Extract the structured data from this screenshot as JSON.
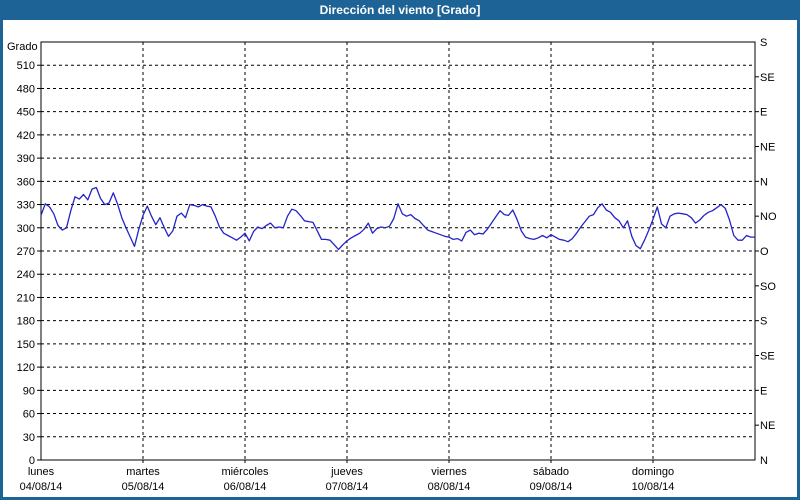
{
  "window": {
    "title": "Dirección del viento [Grado]"
  },
  "colors": {
    "titlebar_bg": "#1e6396",
    "border": "#1e6396",
    "line": "#2424c8",
    "background": "#ffffff",
    "grid": "#000000"
  },
  "chart_data": {
    "type": "line",
    "title": "Dirección del viento [Grado]",
    "ylabel": "Grado",
    "ylim": [
      0,
      540
    ],
    "y_left_step": 30,
    "y_left_labels": [
      0,
      30,
      60,
      90,
      120,
      150,
      180,
      210,
      240,
      270,
      300,
      330,
      360,
      390,
      420,
      450,
      480,
      510
    ],
    "right_ticks": [
      {
        "value": 0,
        "label": "N"
      },
      {
        "value": 45,
        "label": "NE"
      },
      {
        "value": 90,
        "label": "E"
      },
      {
        "value": 135,
        "label": "SE"
      },
      {
        "value": 180,
        "label": "S"
      },
      {
        "value": 225,
        "label": "SO"
      },
      {
        "value": 270,
        "label": "O"
      },
      {
        "value": 315,
        "label": "NO"
      },
      {
        "value": 360,
        "label": "N"
      },
      {
        "value": 405,
        "label": "NE"
      },
      {
        "value": 450,
        "label": "E"
      },
      {
        "value": 495,
        "label": "SE"
      },
      {
        "value": 540,
        "label": "S"
      }
    ],
    "days": [
      {
        "name": "lunes",
        "date": "04/08/14"
      },
      {
        "name": "martes",
        "date": "05/08/14"
      },
      {
        "name": "miércoles",
        "date": "06/08/14"
      },
      {
        "name": "jueves",
        "date": "07/08/14"
      },
      {
        "name": "viernes",
        "date": "08/08/14"
      },
      {
        "name": "sábado",
        "date": "09/08/14"
      },
      {
        "name": "domingo",
        "date": "10/08/14"
      }
    ],
    "hours_per_point": 1,
    "grid": true,
    "legend": "none",
    "values": [
      316,
      331,
      327,
      318,
      303,
      297,
      300,
      322,
      340,
      337,
      343,
      336,
      350,
      352,
      338,
      330,
      332,
      345,
      331,
      313,
      300,
      288,
      276,
      298,
      316,
      328,
      315,
      304,
      313,
      300,
      289,
      296,
      315,
      319,
      313,
      330,
      329,
      327,
      330,
      328,
      327,
      315,
      301,
      293,
      290,
      287,
      284,
      288,
      293,
      283,
      295,
      301,
      299,
      303,
      306,
      300,
      301,
      300,
      315,
      324,
      322,
      316,
      309,
      308,
      307,
      296,
      285,
      285,
      284,
      278,
      272,
      278,
      283,
      287,
      290,
      293,
      298,
      306,
      293,
      299,
      301,
      300,
      302,
      312,
      331,
      318,
      315,
      317,
      312,
      309,
      303,
      297,
      295,
      293,
      291,
      289,
      288,
      285,
      286,
      283,
      294,
      297,
      291,
      293,
      292,
      298,
      306,
      314,
      322,
      317,
      316,
      323,
      311,
      296,
      288,
      286,
      285,
      287,
      290,
      287,
      291,
      288,
      285,
      284,
      282,
      286,
      293,
      301,
      308,
      315,
      317,
      326,
      331,
      323,
      320,
      313,
      309,
      300,
      309,
      289,
      277,
      273,
      284,
      297,
      311,
      327,
      305,
      300,
      315,
      318,
      319,
      318,
      317,
      313,
      306,
      310,
      316,
      320,
      322,
      326,
      330,
      325,
      310,
      290,
      284,
      284,
      290,
      288,
      288
    ]
  }
}
